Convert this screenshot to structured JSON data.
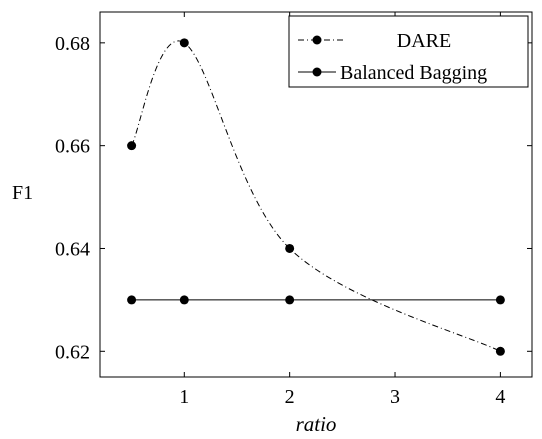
{
  "chart_data": {
    "type": "line",
    "xlabel": "ratio",
    "ylabel": "F1",
    "xlim": [
      0.2,
      4.3
    ],
    "ylim": [
      0.615,
      0.686
    ],
    "x_ticks": [
      1,
      2,
      3,
      4
    ],
    "y_ticks": [
      0.62,
      0.64,
      0.66,
      0.68
    ],
    "x_tick_labels": [
      "1",
      "2",
      "3",
      "4"
    ],
    "y_tick_labels": [
      "0.62",
      "0.64",
      "0.66",
      "0.68"
    ],
    "legend_position": "top-right",
    "series": [
      {
        "name": "DARE",
        "style": "dash-dot",
        "smooth": true,
        "x": [
          0.5,
          1,
          2,
          4
        ],
        "y": [
          0.66,
          0.68,
          0.64,
          0.62
        ]
      },
      {
        "name": "Balanced Bagging",
        "style": "solid",
        "smooth": false,
        "x": [
          0.5,
          1,
          2,
          4
        ],
        "y": [
          0.63,
          0.63,
          0.63,
          0.63
        ]
      }
    ]
  }
}
